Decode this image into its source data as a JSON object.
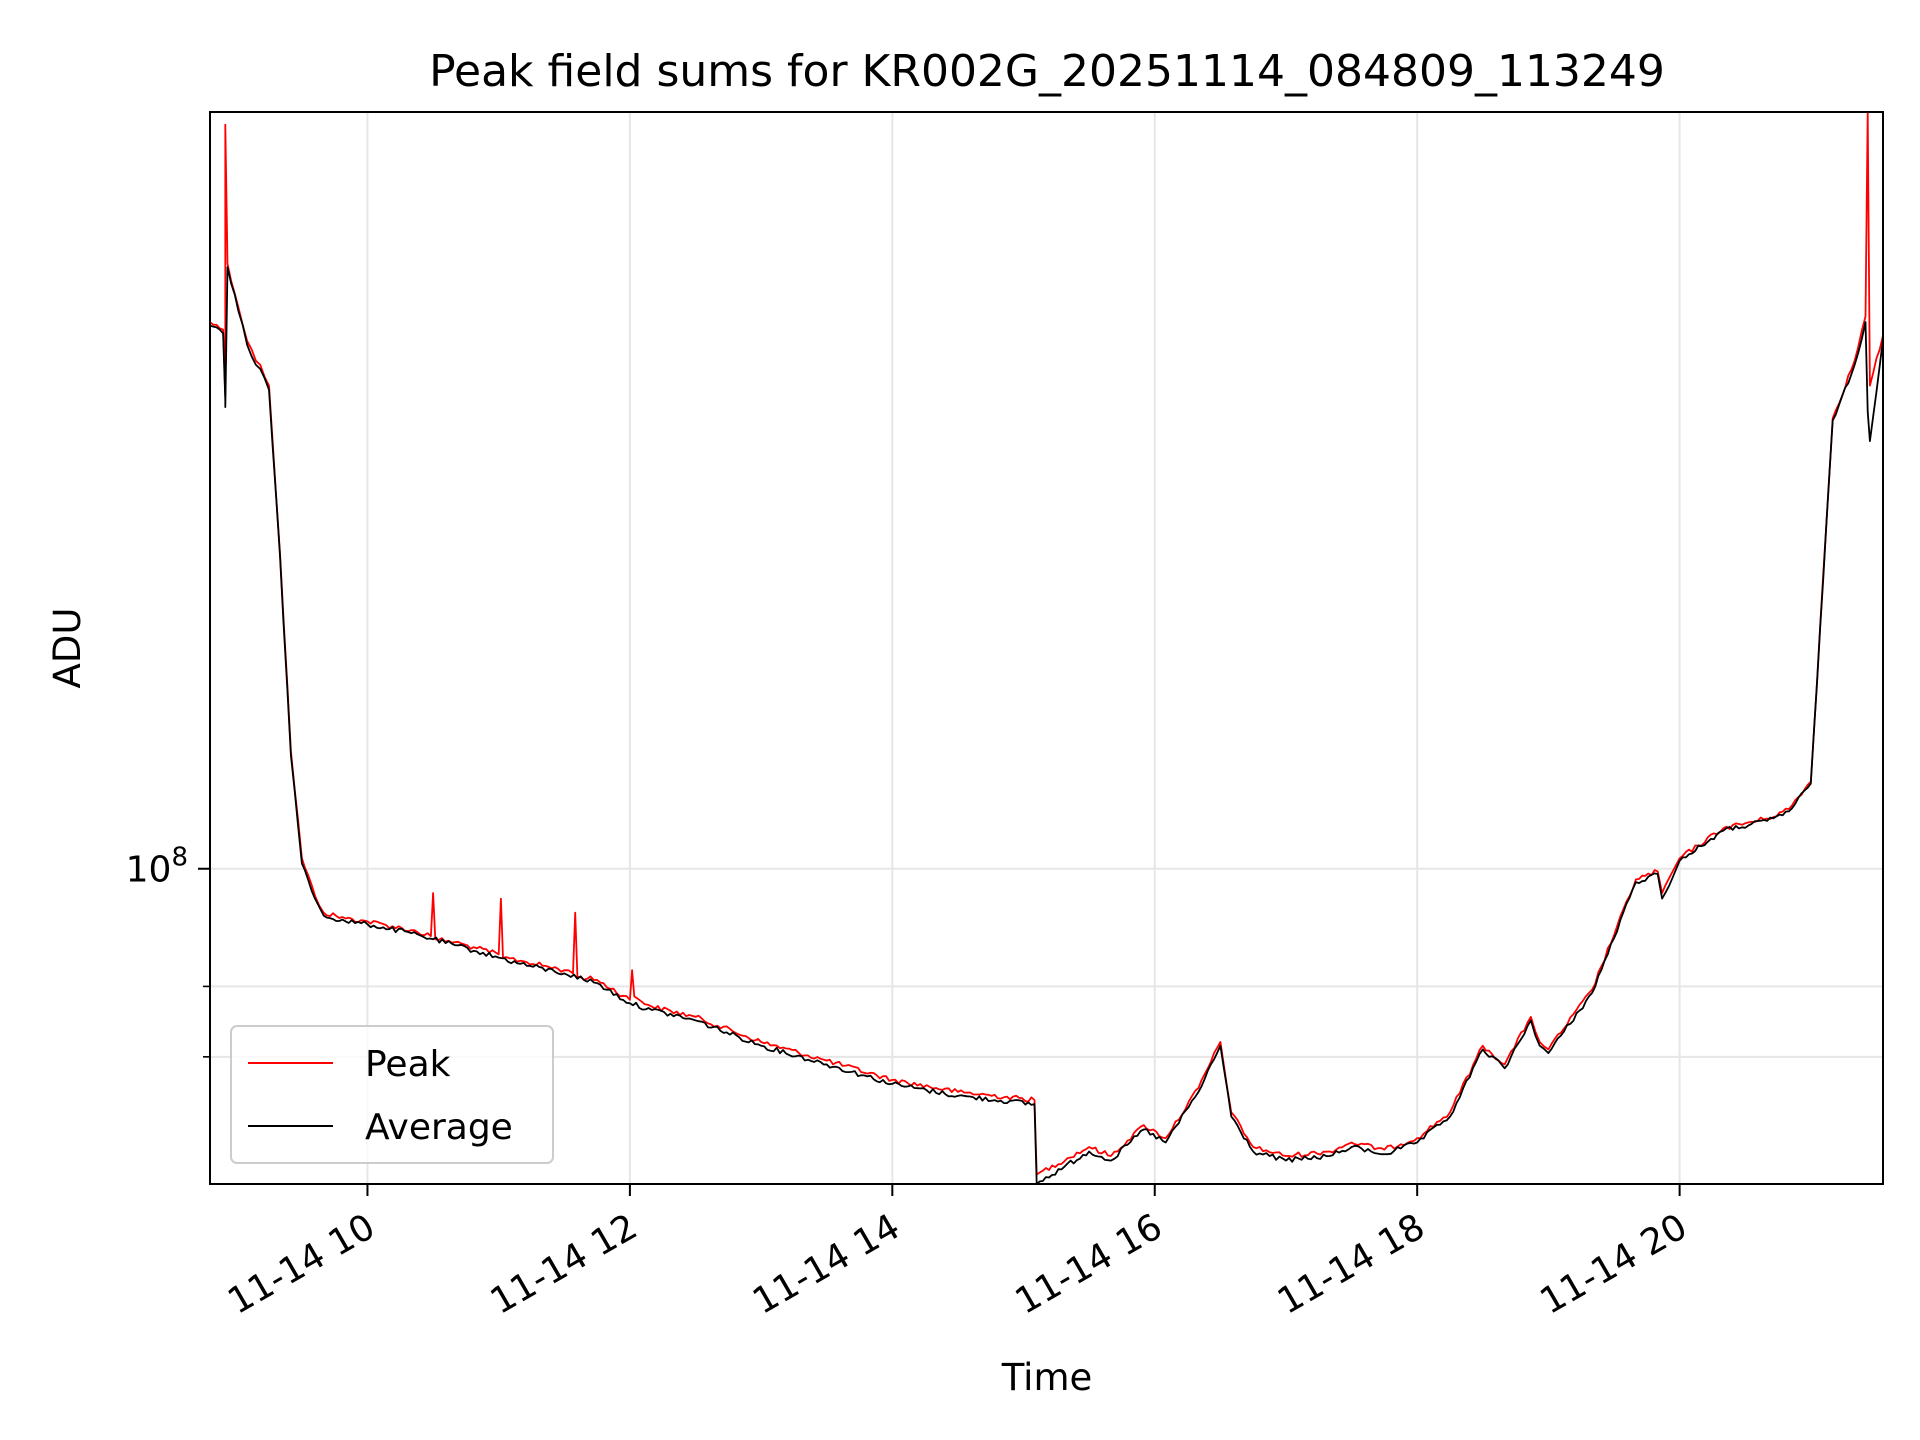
{
  "chart_data": {
    "type": "line",
    "title": "Peak field sums for KR002G_20251114_084809_113249",
    "xlabel": "Time",
    "ylabel": "ADU",
    "x_axis": {
      "type": "time",
      "range": [
        "2025-11-14 08:48",
        "2025-11-14 21:33"
      ],
      "ticks": [
        "2025-11-14 10:00",
        "2025-11-14 12:00",
        "2025-11-14 14:00",
        "2025-11-14 16:00",
        "2025-11-14 18:00",
        "2025-11-14 20:00"
      ],
      "tick_labels": [
        "11-14 10",
        "11-14 12",
        "11-14 14",
        "11-14 16",
        "11-14 18",
        "11-14 20"
      ]
    },
    "y_axis": {
      "scale": "log",
      "range": [
        55000000,
        420000000
      ],
      "major_tick": 100000000,
      "major_tick_label": "10^8",
      "minor_ticks": [
        70000000,
        80000000
      ]
    },
    "grid": true,
    "legend": "lower-left",
    "series": [
      {
        "name": "Peak",
        "color": "#ff0000",
        "x": [
          "08:48",
          "08:54",
          "08:55",
          "08:55",
          "08:56",
          "09:01",
          "09:05",
          "09:09",
          "09:11",
          "09:15",
          "09:20",
          "09:25",
          "09:30",
          "09:36",
          "09:40",
          "09:50",
          "10:00",
          "10:20",
          "10:29",
          "10:30",
          "10:31",
          "10:40",
          "10:50",
          "11:00",
          "11:01",
          "11:02",
          "11:10",
          "11:30",
          "11:34",
          "11:35",
          "11:36",
          "11:45",
          "12:00",
          "12:01",
          "12:02",
          "12:10",
          "12:30",
          "13:00",
          "13:30",
          "14:00",
          "14:30",
          "15:05",
          "15:06",
          "15:30",
          "15:40",
          "15:55",
          "16:05",
          "16:20",
          "16:30",
          "16:35",
          "16:45",
          "17:00",
          "17:20",
          "17:30",
          "17:45",
          "18:00",
          "18:15",
          "18:30",
          "18:40",
          "18:52",
          "18:56",
          "19:00",
          "19:20",
          "19:40",
          "19:50",
          "19:52",
          "20:00",
          "20:20",
          "20:40",
          "20:50",
          "21:00",
          "21:10",
          "21:20",
          "21:25",
          "21:26",
          "21:27",
          "21:33"
        ],
        "values": [
          282000000,
          278000000,
          245000000,
          410000000,
          315000000,
          290000000,
          272000000,
          262000000,
          260000000,
          250000000,
          182000000,
          125000000,
          102000000,
          95000000,
          92000000,
          91000000,
          90500000,
          89000000,
          88000000,
          95500000,
          87500000,
          87000000,
          86000000,
          85000000,
          94500000,
          84500000,
          84000000,
          82500000,
          82000000,
          92000000,
          81500000,
          81000000,
          78000000,
          82500000,
          78500000,
          77000000,
          75500000,
          72000000,
          69500000,
          67000000,
          65500000,
          64500000,
          56000000,
          59000000,
          58000000,
          61500000,
          60000000,
          66000000,
          72000000,
          63000000,
          59000000,
          58000000,
          58500000,
          59500000,
          58700000,
          60000000,
          63000000,
          71500000,
          69000000,
          75500000,
          72000000,
          71000000,
          79500000,
          98000000,
          99500000,
          95500000,
          102000000,
          108000000,
          110000000,
          112000000,
          118000000,
          235000000,
          262000000,
          285000000,
          420000000,
          250000000,
          275000000
        ]
      },
      {
        "name": "Average",
        "color": "#000000",
        "x": [
          "08:48",
          "08:54",
          "08:55",
          "08:55",
          "08:56",
          "09:01",
          "09:05",
          "09:09",
          "09:11",
          "09:15",
          "09:20",
          "09:25",
          "09:30",
          "09:36",
          "09:40",
          "09:50",
          "10:00",
          "10:20",
          "10:30",
          "10:40",
          "10:50",
          "11:00",
          "11:10",
          "11:30",
          "11:45",
          "12:00",
          "12:10",
          "12:30",
          "13:00",
          "13:30",
          "14:00",
          "14:30",
          "15:05",
          "15:06",
          "15:30",
          "15:40",
          "15:55",
          "16:05",
          "16:20",
          "16:30",
          "16:35",
          "16:45",
          "17:00",
          "17:20",
          "17:30",
          "17:45",
          "18:00",
          "18:15",
          "18:30",
          "18:40",
          "18:52",
          "18:56",
          "19:00",
          "19:20",
          "19:40",
          "19:50",
          "19:52",
          "20:00",
          "20:20",
          "20:40",
          "20:50",
          "21:00",
          "21:10",
          "21:20",
          "21:25",
          "21:26",
          "21:27",
          "21:33"
        ],
        "values": [
          280000000,
          276000000,
          243000000,
          240000000,
          313000000,
          288000000,
          270000000,
          260000000,
          258000000,
          248000000,
          181000000,
          124000000,
          101000000,
          94500000,
          91500000,
          90500000,
          90000000,
          88500000,
          87500000,
          86500000,
          85500000,
          84500000,
          83500000,
          82000000,
          80500000,
          77500000,
          76500000,
          75000000,
          71500000,
          69000000,
          66500000,
          65000000,
          64000000,
          55000000,
          58500000,
          57500000,
          61000000,
          59500000,
          65500000,
          71500000,
          62500000,
          58500000,
          57500000,
          58000000,
          59000000,
          58200000,
          59500000,
          62500000,
          71000000,
          68500000,
          75000000,
          71500000,
          70500000,
          79000000,
          97500000,
          99000000,
          94500000,
          101500000,
          107500000,
          109500000,
          111500000,
          117500000,
          234000000,
          260000000,
          282000000,
          238000000,
          225000000,
          273000000
        ]
      }
    ]
  }
}
